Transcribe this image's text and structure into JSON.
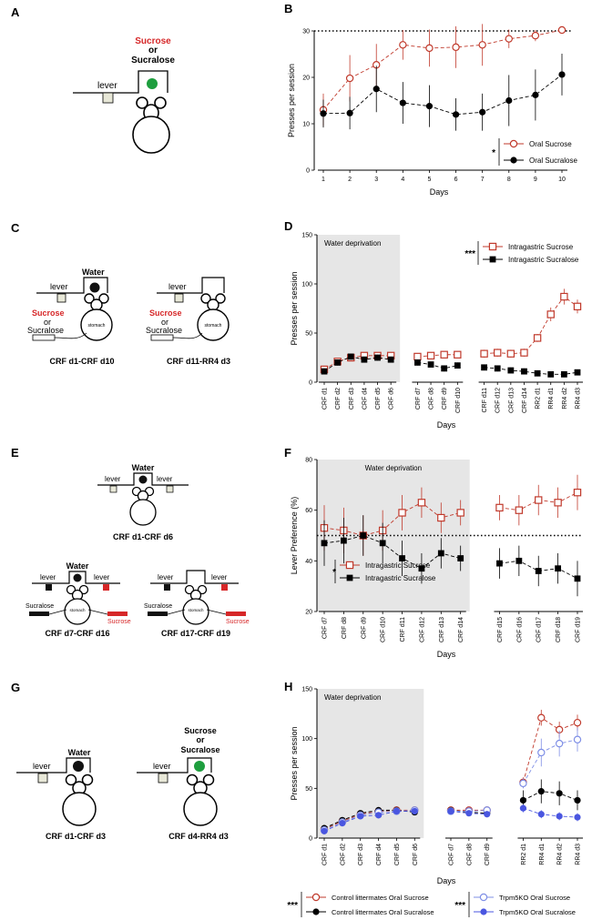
{
  "panels": {
    "A": {
      "letter": "A",
      "treat_top": "Sucrose",
      "treat_mid": "or",
      "treat_bot": "Sucralose",
      "lever": "lever"
    },
    "C": {
      "letter": "C",
      "water": "Water",
      "lever": "lever",
      "sucrose": "Sucrose",
      "or": "or",
      "sucralose": "Sucralose",
      "stomach": "stomach",
      "caption1": "CRF d1-CRF d10",
      "caption2": "CRF d11-RR4 d3"
    },
    "E": {
      "letter": "E",
      "water": "Water",
      "lever": "lever",
      "caption_top": "CRF d1-CRF d6",
      "sucralose": "Sucralose",
      "sucrose": "Sucrose",
      "stomach": "stomach",
      "caption1": "CRF d7-CRF d16",
      "caption2": "CRF d17-CRF d19"
    },
    "G": {
      "letter": "G",
      "water": "Water",
      "lever": "lever",
      "sucrose": "Sucrose",
      "or": "or",
      "sucralose": "Sucralose",
      "caption1": "CRF d1-CRF d3",
      "caption2": "CRF d4-RR4 d3"
    }
  },
  "chart_data": [
    {
      "letter": "B",
      "type": "line",
      "ylabel": "Presses per session",
      "xlabel": "Days",
      "x": [
        1,
        2,
        3,
        4,
        5,
        6,
        7,
        8,
        9,
        10
      ],
      "ylim": [
        0,
        30
      ],
      "yticks": [
        0,
        10,
        20,
        30
      ],
      "ref_line": 30,
      "sig": "*",
      "series": [
        {
          "name": "Oral Sucrose",
          "color": "#c0392b",
          "marker": "open-circle",
          "values": [
            13,
            19.8,
            22.7,
            27,
            26.3,
            26.5,
            27,
            28.3,
            29,
            30.2
          ],
          "err": [
            3.5,
            5,
            4.5,
            3.2,
            4,
            4.5,
            4.5,
            2,
            1.2,
            0.8
          ]
        },
        {
          "name": "Oral Sucralose",
          "color": "#000000",
          "marker": "filled-circle",
          "values": [
            12.2,
            12.3,
            17.5,
            14.5,
            13.8,
            12,
            12.5,
            15,
            16.2,
            20.6
          ],
          "err": [
            3,
            3.5,
            5,
            4.5,
            4.5,
            3.5,
            4,
            5.5,
            5.5,
            4.5
          ]
        }
      ]
    },
    {
      "letter": "D",
      "type": "line",
      "ylabel": "Presses per session",
      "xlabel": "Days",
      "ylim": [
        0,
        150
      ],
      "yticks": [
        0,
        50,
        100,
        150
      ],
      "shade_label": "Water deprivation",
      "sig": "***",
      "groups": [
        [
          "CRF d1",
          "CRF d2",
          "CRF d3",
          "CRF d4",
          "CRF d5",
          "CRF d6"
        ],
        [
          "CRF d7",
          "CRF d8",
          "CRF d9",
          "CRF d10"
        ],
        [
          "CRF d11",
          "CRF d12",
          "CRF d13",
          "CRF d14",
          "RR2 d1",
          "RR4 d1",
          "RR4 d2",
          "RR4 d3"
        ]
      ],
      "series": [
        {
          "name": "Intragastric Sucrose",
          "color": "#c0392b",
          "marker": "open-square",
          "values": [
            [
              13,
              21,
              25,
              27,
              27,
              27
            ],
            [
              26,
              27,
              28,
              28
            ],
            [
              29,
              30,
              29,
              30,
              45,
              69,
              87,
              77
            ]
          ],
          "err": [
            [
              3,
              3,
              3,
              3,
              3,
              3
            ],
            [
              3,
              3,
              3,
              3
            ],
            [
              4,
              4,
              4,
              4,
              4,
              7,
              8,
              7
            ]
          ]
        },
        {
          "name": "Intragastric Sucralose",
          "color": "#000000",
          "marker": "filled-square",
          "values": [
            [
              11,
              20,
              26,
              23,
              25,
              23
            ],
            [
              20,
              18,
              14,
              17
            ],
            [
              15,
              14,
              12,
              11,
              9,
              8,
              8,
              10
            ]
          ],
          "err": [
            [
              3,
              3,
              3,
              3,
              3,
              3
            ],
            [
              3,
              3,
              3,
              3
            ],
            [
              3,
              3,
              3,
              3,
              3,
              3,
              3,
              3
            ]
          ]
        }
      ]
    },
    {
      "letter": "F",
      "type": "line",
      "ylabel": "Lever Preference (%)",
      "xlabel": "Days",
      "ylim": [
        20,
        80
      ],
      "yticks": [
        20,
        40,
        60,
        80
      ],
      "ref_line": 50,
      "shade_label": "Water deprivation",
      "sig": "*",
      "groups": [
        [
          "CRF d7",
          "CRF d8",
          "CRF d9",
          "CRF d10",
          "CRF d11",
          "CRF d12",
          "CRF d13",
          "CRF d14"
        ],
        [
          "CRF d15",
          "CRF d16",
          "CRF d17",
          "CRF d18",
          "CRF d19"
        ]
      ],
      "series": [
        {
          "name": "Intragastric Sucrose",
          "color": "#c0392b",
          "marker": "open-square",
          "values": [
            [
              53,
              52,
              50,
              52,
              59,
              63,
              57,
              59
            ],
            [
              61,
              60,
              64,
              63,
              67
            ]
          ],
          "err": [
            [
              9,
              9,
              8,
              8,
              7,
              6,
              6,
              5
            ],
            [
              5,
              6,
              6,
              6,
              7
            ]
          ]
        },
        {
          "name": "Intragastric Sucralose",
          "color": "#000000",
          "marker": "filled-square",
          "values": [
            [
              47,
              48,
              50,
              47,
              41,
              37,
              43,
              41
            ],
            [
              39,
              40,
              36,
              37,
              33
            ]
          ],
          "err": [
            [
              9,
              9,
              8,
              8,
              7,
              6,
              6,
              5
            ],
            [
              6,
              6,
              6,
              6,
              7
            ]
          ]
        }
      ]
    },
    {
      "letter": "H",
      "type": "line",
      "ylabel": "Presses per session",
      "xlabel": "Days",
      "ylim": [
        0,
        150
      ],
      "yticks": [
        0,
        50,
        100,
        150
      ],
      "shade_label": "Water deprivation",
      "sig": "***",
      "groups": [
        [
          "CRF d1",
          "CRF d2",
          "CRF d3",
          "CRF d4",
          "CRF d5",
          "CRF d6"
        ],
        [
          "CRF d7",
          "CRF d8",
          "CRF d9"
        ],
        [
          "RR2 d1",
          "RR4 d1",
          "RR4 d2",
          "RR4 d3"
        ]
      ],
      "series": [
        {
          "name": "Control littermates Oral Sucrose",
          "color": "#c0392b",
          "marker": "open-circle",
          "values": [
            [
              9,
              17,
              24,
              27,
              28,
              28
            ],
            [
              28,
              28,
              28
            ],
            [
              56,
              121,
              109,
              116
            ]
          ],
          "err": [
            [
              2,
              2,
              2,
              2,
              2,
              2
            ],
            [
              2,
              2,
              2
            ],
            [
              5,
              8,
              8,
              8
            ]
          ]
        },
        {
          "name": "Control littermates Oral Sucralose",
          "color": "#000000",
          "marker": "filled-circle",
          "values": [
            [
              10,
              18,
              25,
              28,
              28,
              26
            ],
            [
              28,
              26,
              25
            ],
            [
              38,
              47,
              45,
              38
            ]
          ],
          "err": [
            [
              2,
              2,
              2,
              2,
              2,
              2
            ],
            [
              2,
              2,
              2
            ],
            [
              10,
              12,
              12,
              10
            ]
          ]
        },
        {
          "name": "Trpm5KO Oral Sucrose",
          "color": "#7f8fe6",
          "marker": "open-circle",
          "values": [
            [
              8,
              16,
              23,
              26,
              27,
              28
            ],
            [
              27,
              27,
              28
            ],
            [
              55,
              86,
              95,
              99
            ]
          ],
          "err": [
            [
              2,
              2,
              2,
              2,
              2,
              2
            ],
            [
              2,
              2,
              2
            ],
            [
              5,
              14,
              13,
              12
            ]
          ]
        },
        {
          "name": "Trpm5KO Oral Sucralose",
          "color": "#4a56e0",
          "marker": "filled-circle",
          "values": [
            [
              7,
              15,
              22,
              23,
              27,
              27
            ],
            [
              27,
              25,
              24
            ],
            [
              30,
              24,
              22,
              21
            ]
          ],
          "err": [
            [
              2,
              2,
              2,
              2,
              2,
              2
            ],
            [
              2,
              2,
              2
            ],
            [
              4,
              4,
              4,
              4
            ]
          ]
        }
      ]
    }
  ]
}
